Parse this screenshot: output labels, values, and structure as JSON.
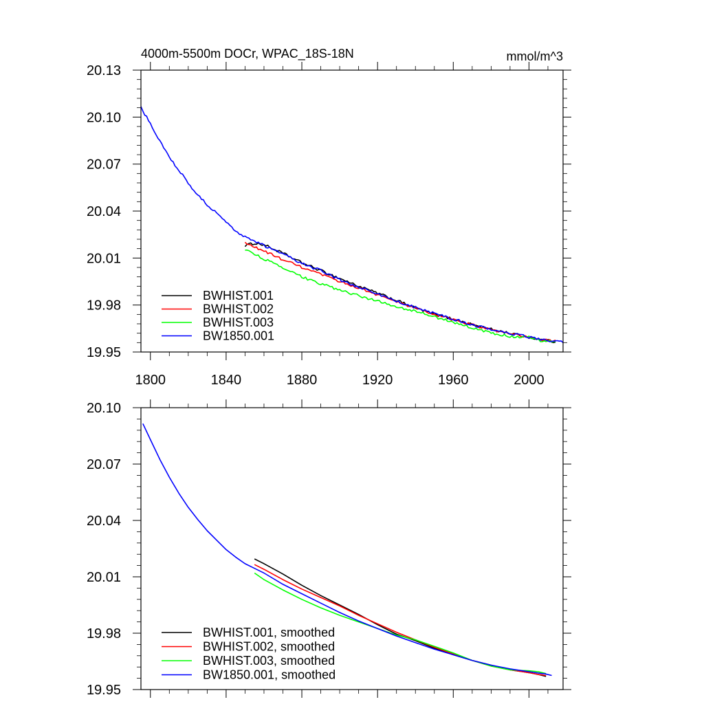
{
  "units": "mmol/m^3",
  "chart_data": [
    {
      "type": "line",
      "title": "4000m-5500m DOCr, WPAC_18S-18N",
      "units_label": "mmol/m^3",
      "xlim": [
        1795,
        2018
      ],
      "ylim": [
        19.95,
        20.13
      ],
      "xticks": [
        1800,
        1840,
        1880,
        1920,
        1960,
        2000
      ],
      "yticks": [
        19.95,
        19.98,
        20.01,
        20.04,
        20.07,
        20.1,
        20.13
      ],
      "ytick_labels": [
        "19.95",
        "19.98",
        "20.01",
        "20.04",
        "20.07",
        "20.10",
        "20.13"
      ],
      "xtick_labels": [
        "1800",
        "1840",
        "1880",
        "1920",
        "1960",
        "2000"
      ],
      "legend_position": "bottom-left",
      "series": [
        {
          "name": "BWHIST.001",
          "color": "#000000",
          "noise": 0.0014,
          "x": [
            1850,
            1855,
            1860,
            1870,
            1880,
            1890,
            1900,
            1910,
            1920,
            1930,
            1940,
            1950,
            1960,
            1970,
            1980,
            1990,
            2000,
            2005,
            2014
          ],
          "y": [
            20.018,
            20.0195,
            20.0185,
            20.013,
            20.007,
            20.002,
            19.997,
            19.992,
            19.9875,
            19.983,
            19.978,
            19.974,
            19.971,
            19.9675,
            19.9645,
            19.962,
            19.9595,
            19.958,
            19.9565
          ]
        },
        {
          "name": "BWHIST.002",
          "color": "#ff0000",
          "noise": 0.0013,
          "x": [
            1850,
            1855,
            1860,
            1870,
            1880,
            1890,
            1900,
            1910,
            1920,
            1930,
            1940,
            1950,
            1960,
            1970,
            1980,
            1990,
            2000,
            2005,
            2014
          ],
          "y": [
            20.0195,
            20.017,
            20.0145,
            20.009,
            20.004,
            19.9995,
            19.995,
            19.991,
            19.9865,
            19.982,
            19.978,
            19.974,
            19.9705,
            19.9675,
            19.964,
            19.9615,
            19.9595,
            19.958,
            19.957
          ]
        },
        {
          "name": "BWHIST.003",
          "color": "#00ff00",
          "noise": 0.0013,
          "x": [
            1850,
            1855,
            1860,
            1870,
            1880,
            1890,
            1900,
            1910,
            1920,
            1930,
            1940,
            1950,
            1960,
            1970,
            1980,
            1990,
            2000,
            2005,
            2014
          ],
          "y": [
            20.0155,
            20.0125,
            20.0095,
            20.0035,
            19.998,
            19.9935,
            19.9895,
            19.986,
            19.9825,
            19.979,
            19.976,
            19.9725,
            19.969,
            19.9655,
            19.962,
            19.96,
            19.9595,
            19.9575,
            19.9565
          ]
        },
        {
          "name": "BW1850.001",
          "color": "#0000ff",
          "noise": 0.0014,
          "x": [
            1795,
            1800,
            1805,
            1810,
            1815,
            1820,
            1825,
            1830,
            1835,
            1840,
            1845,
            1850,
            1855,
            1860,
            1870,
            1880,
            1890,
            1900,
            1910,
            1920,
            1930,
            1940,
            1950,
            1960,
            1970,
            1980,
            1990,
            2000,
            2010,
            2018
          ],
          "y": [
            20.106,
            20.096,
            20.085,
            20.0745,
            20.066,
            20.058,
            20.0505,
            20.044,
            20.0385,
            20.033,
            20.0275,
            20.0235,
            20.0205,
            20.018,
            20.0125,
            20.0065,
            20.002,
            19.996,
            19.9915,
            19.987,
            19.9825,
            19.9785,
            19.9745,
            19.971,
            19.9675,
            19.9645,
            19.962,
            19.9595,
            19.9575,
            19.9565
          ]
        }
      ]
    },
    {
      "type": "line",
      "title": "",
      "xlim": [
        1795,
        2018
      ],
      "ylim": [
        19.95,
        20.1
      ],
      "xticks": [
        1800,
        1840,
        1880,
        1920,
        1960,
        2000
      ],
      "yticks": [
        19.95,
        19.98,
        20.01,
        20.04,
        20.07,
        20.1
      ],
      "ytick_labels": [
        "19.95",
        "19.98",
        "20.01",
        "20.04",
        "20.07",
        "20.10"
      ],
      "legend_position": "bottom-left",
      "series": [
        {
          "name": "BWHIST.001, smoothed",
          "color": "#000000",
          "x": [
            1855,
            1860,
            1870,
            1880,
            1890,
            1900,
            1910,
            1920,
            1930,
            1940,
            1950,
            1960,
            1970,
            1980,
            1990,
            2000,
            2005,
            2009
          ],
          "y": [
            20.0195,
            20.017,
            20.0115,
            20.0055,
            20.0,
            19.995,
            19.99,
            19.9845,
            19.9795,
            19.976,
            19.972,
            19.9685,
            19.9655,
            19.963,
            19.9605,
            19.959,
            19.958,
            19.957
          ]
        },
        {
          "name": "BWHIST.002, smoothed",
          "color": "#ff0000",
          "x": [
            1855,
            1860,
            1870,
            1880,
            1890,
            1900,
            1910,
            1920,
            1930,
            1940,
            1950,
            1960,
            1970,
            1980,
            1990,
            2000,
            2005,
            2009
          ],
          "y": [
            20.0165,
            20.014,
            20.0085,
            20.0035,
            19.999,
            19.9945,
            19.9895,
            19.985,
            19.9805,
            19.9765,
            19.9725,
            19.969,
            19.9655,
            19.9625,
            19.9605,
            19.959,
            19.958,
            19.9575
          ]
        },
        {
          "name": "BWHIST.003, smoothed",
          "color": "#00ff00",
          "x": [
            1855,
            1860,
            1870,
            1880,
            1890,
            1900,
            1910,
            1920,
            1930,
            1940,
            1950,
            1960,
            1970,
            1980,
            1990,
            2000,
            2005,
            2009
          ],
          "y": [
            20.012,
            20.0085,
            20.003,
            19.998,
            19.9935,
            19.9895,
            19.986,
            19.9825,
            19.979,
            19.9765,
            19.973,
            19.9695,
            19.9655,
            19.9625,
            19.9605,
            19.96,
            19.9595,
            19.9585
          ]
        },
        {
          "name": "BW1850.001, smoothed",
          "color": "#0000ff",
          "x": [
            1796,
            1800,
            1805,
            1810,
            1815,
            1820,
            1825,
            1830,
            1835,
            1840,
            1845,
            1850,
            1855,
            1860,
            1870,
            1880,
            1890,
            1900,
            1910,
            1920,
            1930,
            1940,
            1950,
            1960,
            1970,
            1980,
            1990,
            2000,
            2007,
            2008,
            2012
          ],
          "y": [
            20.0915,
            20.083,
            20.0725,
            20.063,
            20.0545,
            20.047,
            20.0405,
            20.0345,
            20.0295,
            20.0245,
            20.0205,
            20.017,
            20.0145,
            20.012,
            20.006,
            20.001,
            19.996,
            19.991,
            19.9865,
            19.9825,
            19.9785,
            19.975,
            19.9715,
            19.9685,
            19.9655,
            19.963,
            19.961,
            19.9595,
            19.9585,
            19.9585,
            19.9575
          ]
        }
      ]
    }
  ]
}
